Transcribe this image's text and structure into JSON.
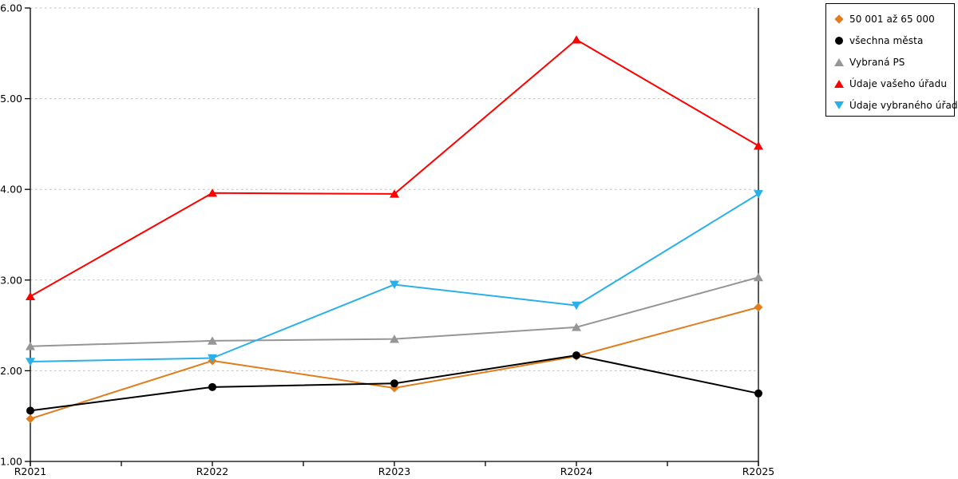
{
  "chart_data": {
    "type": "line",
    "title": "",
    "xlabel": "",
    "ylabel": "",
    "categories": [
      "R2021",
      "R2022",
      "R2023",
      "R2024",
      "R2025"
    ],
    "y_axis": {
      "min": 1.0,
      "max": 6.0,
      "step": 1.0,
      "tick_labels": [
        "1.00",
        "2.00",
        "3.00",
        "4.00",
        "5.00",
        "6.00"
      ]
    },
    "grid": "horizontal-dashed",
    "legend_position": "top-right",
    "series": [
      {
        "name": "50 001 až 65 000",
        "marker": "diamond",
        "color": "#E07D1E",
        "values": [
          1.47,
          2.11,
          1.81,
          2.16,
          2.7
        ]
      },
      {
        "name": "všechna města",
        "marker": "circle",
        "color": "#000000",
        "values": [
          1.56,
          1.82,
          1.86,
          2.17,
          1.75
        ]
      },
      {
        "name": "Vybraná PS",
        "marker": "triangle-up",
        "color": "#969696",
        "values": [
          2.27,
          2.33,
          2.35,
          2.48,
          3.03
        ]
      },
      {
        "name": "Údaje vašeho úřadu",
        "marker": "triangle-up",
        "color": "#FE0000",
        "values": [
          2.82,
          3.96,
          3.95,
          5.65,
          4.48
        ]
      },
      {
        "name": "Údaje vybraného úřadu",
        "marker": "triangle-down",
        "color": "#29B0E8",
        "values": [
          2.1,
          2.14,
          2.95,
          2.72,
          3.95
        ]
      }
    ]
  },
  "colors": {
    "background": "#ffffff",
    "axis": "#000000",
    "gridline": "#bdbdbd",
    "tick_label": "#000000",
    "legend_border": "#000000"
  }
}
